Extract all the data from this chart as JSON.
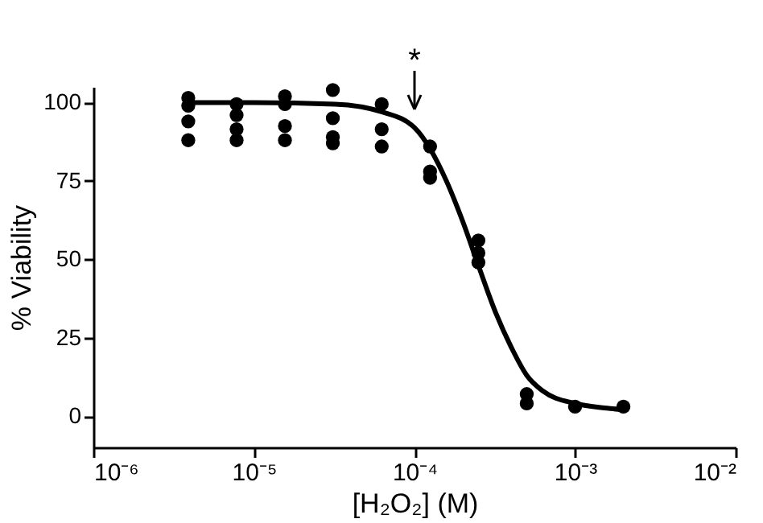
{
  "chart_data": {
    "type": "scatter",
    "xlabel": "[H₂O₂] (M)",
    "ylabel": "% Viability",
    "log": "x",
    "xlim": [
      1e-06,
      0.01
    ],
    "ylim": [
      -10,
      105
    ],
    "xticks": [
      {
        "value": 1e-06,
        "label": "10⁻⁶"
      },
      {
        "value": 1e-05,
        "label": "10⁻⁵"
      },
      {
        "value": 0.0001,
        "label": "10⁻⁴"
      },
      {
        "value": 0.001,
        "label": "10⁻³"
      },
      {
        "value": 0.01,
        "label": "10⁻²"
      }
    ],
    "yticks": [
      0,
      25,
      50,
      75,
      100
    ],
    "grid": false,
    "series": [
      {
        "marker": "circle",
        "color": "#000000",
        "x": [
          3.9e-06,
          3.9e-06,
          3.9e-06,
          3.9e-06,
          7.8e-06,
          7.8e-06,
          7.8e-06,
          7.8e-06,
          1.56e-05,
          1.56e-05,
          1.56e-05,
          1.56e-05,
          3.1e-05,
          3.1e-05,
          3.1e-05,
          3.1e-05,
          6.25e-05,
          6.25e-05,
          6.25e-05,
          0.000125,
          0.000125,
          0.000125,
          0.00025,
          0.00025,
          0.00025,
          0.0005,
          0.0005,
          0.001,
          0.002
        ],
        "values": [
          101.5,
          99,
          94,
          88,
          99.5,
          96,
          91.5,
          88,
          102,
          99.5,
          92.5,
          88,
          104,
          95,
          89,
          87,
          99.5,
          91.5,
          86,
          86,
          78,
          76,
          56,
          52,
          49,
          7,
          4,
          3,
          3
        ]
      },
      {
        "type": "line",
        "marker": "none",
        "color": "#000000",
        "line_style": "solid",
        "x": [
          3.9e-06,
          1e-05,
          3.2e-05,
          6.3e-05,
          0.0001,
          0.000126,
          0.000158,
          0.0002,
          0.00025,
          0.00032,
          0.0004,
          0.0005,
          0.00063,
          0.001,
          0.00158,
          0.002
        ],
        "values": [
          100,
          100,
          99.5,
          97,
          92,
          85,
          75,
          62,
          48,
          33,
          22,
          13,
          8,
          4,
          2.5,
          2
        ]
      }
    ],
    "annotations": [
      "*"
    ]
  }
}
